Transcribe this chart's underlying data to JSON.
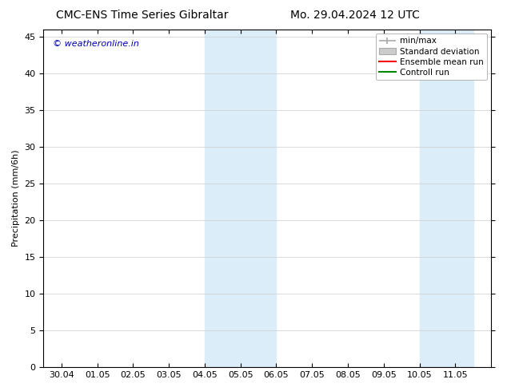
{
  "title_left": "CMC-ENS Time Series Gibraltar",
  "title_right": "Mo. 29.04.2024 12 UTC",
  "ylabel": "Precipitation (mm/6h)",
  "watermark": "© weatheronline.in",
  "ylim_bottom": 0,
  "ylim_top": 46,
  "yticks": [
    0,
    5,
    10,
    15,
    20,
    25,
    30,
    35,
    40,
    45
  ],
  "xtick_labels": [
    "30.04",
    "01.05",
    "02.05",
    "03.05",
    "04.05",
    "05.05",
    "06.05",
    "07.05",
    "08.05",
    "09.05",
    "10.05",
    "11.05"
  ],
  "xtick_positions": [
    0,
    1,
    2,
    3,
    4,
    5,
    6,
    7,
    8,
    9,
    10,
    11
  ],
  "xlim_left": -0.5,
  "xlim_right": 12.0,
  "shaded_regions": [
    {
      "xmin": 4.0,
      "xmax": 6.0,
      "color": "#daedf8"
    },
    {
      "xmin": 10.0,
      "xmax": 11.5,
      "color": "#daedf8"
    }
  ],
  "legend_labels": [
    "min/max",
    "Standard deviation",
    "Ensemble mean run",
    "Controll run"
  ],
  "minmax_color": "#aaaaaa",
  "std_facecolor": "#cccccc",
  "std_edgecolor": "#aaaaaa",
  "ensemble_color": "#ff0000",
  "control_color": "#008800",
  "background_color": "#ffffff",
  "plot_bg_color": "#ffffff",
  "border_color": "#000000",
  "title_fontsize": 10,
  "axis_label_fontsize": 8,
  "tick_fontsize": 8,
  "watermark_color": "#0000bb",
  "watermark_fontsize": 8,
  "legend_fontsize": 7.5,
  "grid_color": "#cccccc",
  "grid_linewidth": 0.5
}
